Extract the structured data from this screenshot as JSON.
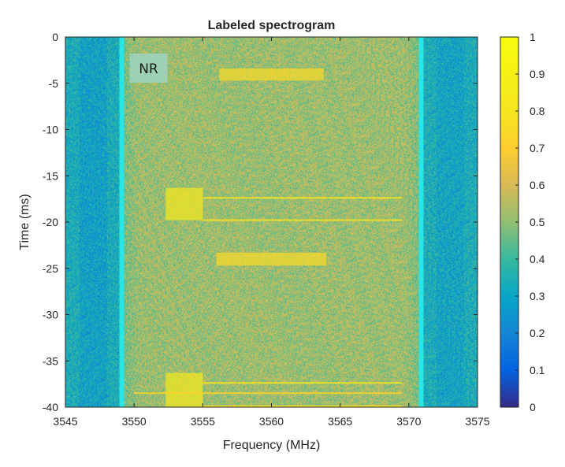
{
  "chart_data": {
    "type": "heatmap",
    "title": "Labeled spectrogram",
    "xlabel": "Frequency (MHz)",
    "ylabel": "Time (ms)",
    "xlim": [
      3545,
      3575
    ],
    "ylim": [
      -40,
      0
    ],
    "xticks": [
      3545,
      3550,
      3555,
      3560,
      3565,
      3570,
      3575
    ],
    "yticks": [
      0,
      -5,
      -10,
      -15,
      -20,
      -25,
      -30,
      -35,
      -40
    ],
    "colorbar": {
      "colormap": "parula",
      "range": [
        0,
        1
      ],
      "ticks": [
        0,
        0.1,
        0.2,
        0.3,
        0.4,
        0.5,
        0.6,
        0.7,
        0.8,
        0.9,
        1
      ]
    },
    "background": {
      "low_bands_mhz": [
        [
          3545,
          3549.1
        ],
        [
          3570.9,
          3575
        ]
      ],
      "low_level": 0.33,
      "mid_band_mhz": [
        3549.1,
        3570.9
      ],
      "mid_level": 0.52
    },
    "labels": [
      {
        "text": "NR",
        "freq_range_mhz": [
          3549.1,
          3570.9
        ],
        "time_range_ms": [
          -40,
          0
        ],
        "boundary_color": "#28e6e6"
      }
    ],
    "signal_bursts": [
      {
        "freq_mhz": [
          3556.2,
          3563.8
        ],
        "time_ms": [
          -3.4,
          -4.7
        ],
        "intensity": 0.75
      },
      {
        "freq_mhz": [
          3552.3,
          3555.0
        ],
        "time_ms": [
          -16.3,
          -19.8
        ],
        "intensity": 0.82
      },
      {
        "freq_mhz": [
          3555.0,
          3569.5
        ],
        "time_ms": [
          -17.3,
          -17.3
        ],
        "intensity": 0.8
      },
      {
        "freq_mhz": [
          3555.0,
          3569.5
        ],
        "time_ms": [
          -19.7,
          -19.7
        ],
        "intensity": 0.78
      },
      {
        "freq_mhz": [
          3556.0,
          3564.0
        ],
        "time_ms": [
          -23.3,
          -24.7
        ],
        "intensity": 0.75
      },
      {
        "freq_mhz": [
          3552.3,
          3555.0
        ],
        "time_ms": [
          -36.3,
          -40.0
        ],
        "intensity": 0.82
      },
      {
        "freq_mhz": [
          3555.0,
          3569.5
        ],
        "time_ms": [
          -37.3,
          -37.3
        ],
        "intensity": 0.78
      },
      {
        "freq_mhz": [
          3550.0,
          3569.5
        ],
        "time_ms": [
          -38.4,
          -38.4
        ],
        "intensity": 0.72
      },
      {
        "freq_mhz": [
          3555.0,
          3569.5
        ],
        "time_ms": [
          -39.8,
          -39.8
        ],
        "intensity": 0.78
      }
    ]
  }
}
